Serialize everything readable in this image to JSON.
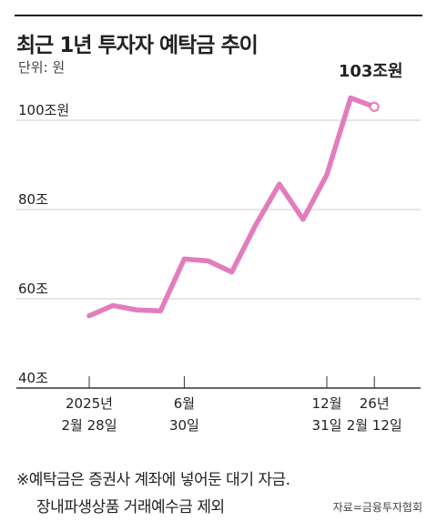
{
  "title": "최근 1년 투자자 예탁금 추이",
  "unit_label": "단위: 원",
  "note": {
    "line1": "※예탁금은 증권사 계좌에 넣어둔 대기 자금.",
    "line2": "장내파생상품 거래예수금 제외"
  },
  "source": "자료=금융투자협회",
  "colors": {
    "line": "#e37cbf",
    "grid": "#cccccc",
    "axis": "#333333",
    "text": "#222222"
  },
  "chart_data": {
    "type": "line",
    "title": "최근 1년 투자자 예탁금 추이",
    "ylim": [
      40,
      103
    ],
    "y_ticks": [
      {
        "value": 40,
        "label": "40조"
      },
      {
        "value": 60,
        "label": "60조"
      },
      {
        "value": 80,
        "label": "80조"
      },
      {
        "value": 100,
        "label": "100조원"
      }
    ],
    "x_ticks": [
      {
        "x": 0,
        "line1": "2025년",
        "line2": "2월 28일"
      },
      {
        "x": 4,
        "line1": "6월",
        "line2": "30일"
      },
      {
        "x": 10,
        "line1": "12월",
        "line2": "31일"
      },
      {
        "x": 12,
        "line1": "26년",
        "line2": "2월 12일"
      }
    ],
    "x": [
      0,
      1,
      2,
      3,
      4,
      5,
      6,
      7,
      8,
      9,
      10,
      11,
      12
    ],
    "values": [
      56.2,
      58.5,
      57.5,
      57.3,
      68.9,
      68.5,
      66.0,
      76.5,
      85.7,
      77.8,
      87.8,
      105.0,
      103.0
    ],
    "last_value_label": "103조원",
    "grid": true
  }
}
